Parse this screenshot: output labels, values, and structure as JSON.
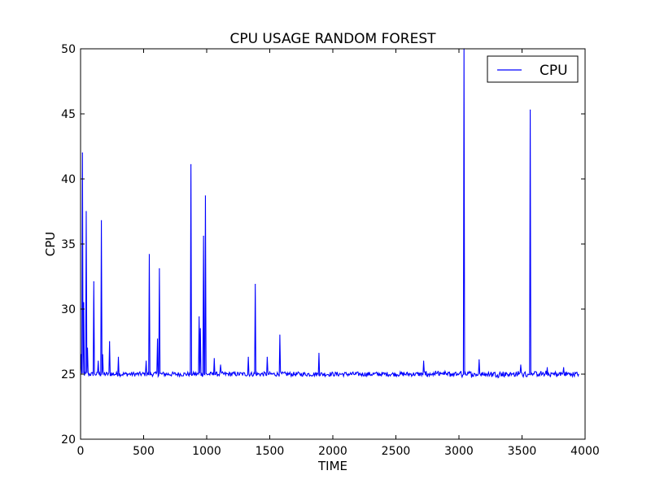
{
  "chart_data": {
    "type": "line",
    "title": "CPU USAGE RANDOM FOREST",
    "xlabel": "TIME",
    "ylabel": "CPU",
    "xlim": [
      0,
      4000
    ],
    "ylim": [
      20,
      50
    ],
    "xticks": [
      0,
      500,
      1000,
      1500,
      2000,
      2500,
      3000,
      3500,
      4000
    ],
    "yticks": [
      20,
      25,
      30,
      35,
      40,
      45,
      50
    ],
    "xtick_labels": [
      "0",
      "500",
      "1000",
      "1500",
      "2000",
      "2500",
      "3000",
      "3500",
      "4000"
    ],
    "ytick_labels": [
      "20",
      "25",
      "30",
      "35",
      "40",
      "45",
      "50"
    ],
    "grid": false,
    "legend_position": "top-right",
    "colors": {
      "series": "#0000ff",
      "axes": "#000000",
      "background": "#ffffff"
    },
    "baseline": 25.0,
    "x_max_observed": 3950,
    "series": [
      {
        "name": "CPU",
        "spikes": [
          [
            5,
            26.5
          ],
          [
            15,
            42.0
          ],
          [
            25,
            30.5
          ],
          [
            45,
            37.5
          ],
          [
            55,
            27.0
          ],
          [
            105,
            32.1
          ],
          [
            140,
            26.0
          ],
          [
            165,
            36.8
          ],
          [
            175,
            26.5
          ],
          [
            230,
            27.5
          ],
          [
            300,
            26.3
          ],
          [
            520,
            26.0
          ],
          [
            545,
            34.2
          ],
          [
            610,
            27.7
          ],
          [
            625,
            33.1
          ],
          [
            875,
            41.1
          ],
          [
            940,
            29.4
          ],
          [
            950,
            28.5
          ],
          [
            975,
            35.6
          ],
          [
            990,
            38.7
          ],
          [
            1060,
            26.2
          ],
          [
            1110,
            25.7
          ],
          [
            1330,
            26.3
          ],
          [
            1385,
            31.9
          ],
          [
            1480,
            26.3
          ],
          [
            1580,
            28.0
          ],
          [
            1890,
            26.6
          ],
          [
            2720,
            26.0
          ],
          [
            3040,
            50.0
          ],
          [
            3160,
            26.1
          ],
          [
            3490,
            25.7
          ],
          [
            3565,
            45.3
          ],
          [
            3700,
            25.5
          ],
          [
            3830,
            25.5
          ]
        ]
      }
    ]
  }
}
